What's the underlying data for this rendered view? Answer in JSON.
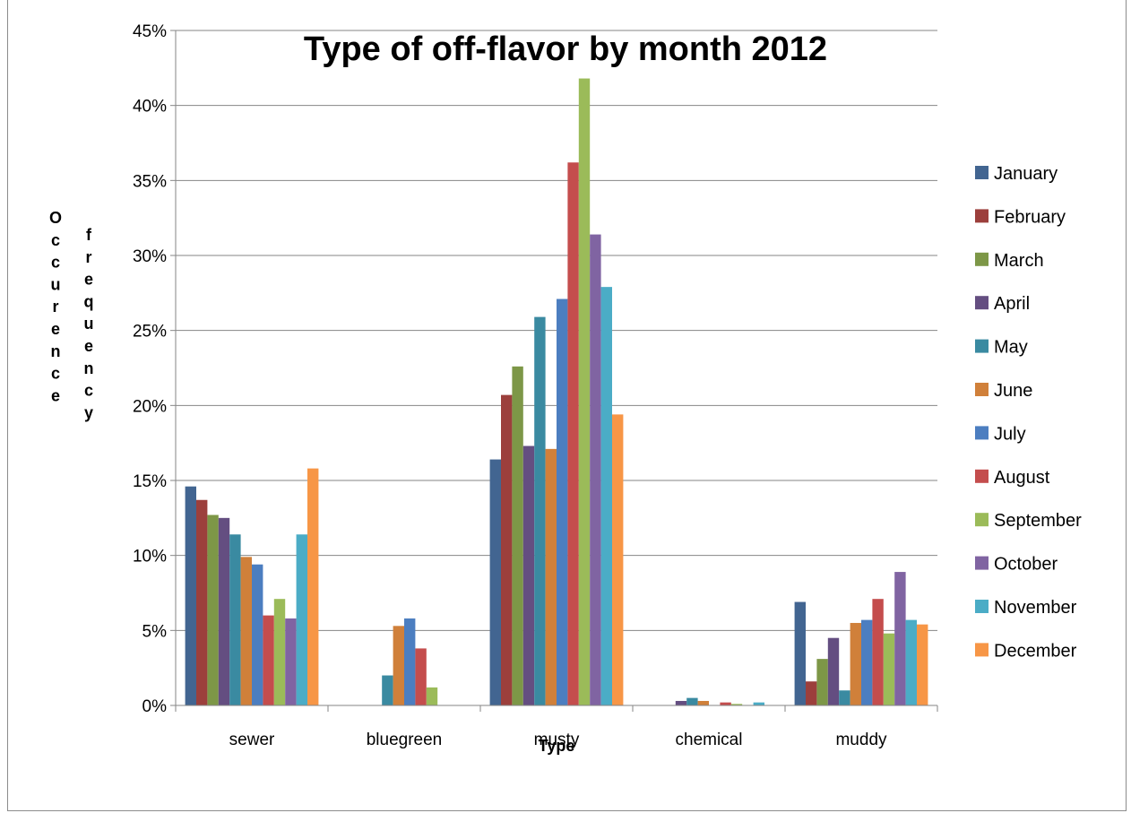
{
  "chart_data": {
    "type": "bar",
    "title": "Type of off-flavor by month 2012",
    "xlabel": "Type",
    "ylabel_parts": [
      "Occurence",
      "frequency"
    ],
    "categories": [
      "sewer",
      "bluegreen",
      "musty",
      "chemical",
      "muddy"
    ],
    "ylim": [
      0,
      45
    ],
    "yticks": [
      0,
      5,
      10,
      15,
      20,
      25,
      30,
      35,
      40,
      45
    ],
    "ytick_labels": [
      "0%",
      "5%",
      "10%",
      "15%",
      "20%",
      "25%",
      "30%",
      "35%",
      "40%",
      "45%"
    ],
    "grid": true,
    "legend_position": "right",
    "series": [
      {
        "name": "January",
        "color": "#426591",
        "values": [
          14.6,
          0,
          16.4,
          0,
          6.9
        ]
      },
      {
        "name": "February",
        "color": "#9c3f3c",
        "values": [
          13.7,
          0,
          20.7,
          0,
          1.6
        ]
      },
      {
        "name": "March",
        "color": "#7d9747",
        "values": [
          12.7,
          0,
          22.6,
          0,
          3.1
        ]
      },
      {
        "name": "April",
        "color": "#644e81",
        "values": [
          12.5,
          0,
          17.3,
          0.3,
          4.5
        ]
      },
      {
        "name": "May",
        "color": "#3a8aa1",
        "values": [
          11.4,
          2.0,
          25.9,
          0.5,
          1.0
        ]
      },
      {
        "name": "June",
        "color": "#d0803a",
        "values": [
          9.9,
          5.3,
          17.1,
          0.3,
          5.5
        ]
      },
      {
        "name": "July",
        "color": "#4c7ec0",
        "values": [
          9.4,
          5.8,
          27.1,
          0,
          5.7
        ]
      },
      {
        "name": "August",
        "color": "#c44d4d",
        "values": [
          6.0,
          3.8,
          36.2,
          0.2,
          7.1
        ]
      },
      {
        "name": "September",
        "color": "#9bbb59",
        "values": [
          7.1,
          1.2,
          41.8,
          0.1,
          4.8
        ]
      },
      {
        "name": "October",
        "color": "#8064a2",
        "values": [
          5.8,
          0,
          31.4,
          0,
          8.9
        ]
      },
      {
        "name": "November",
        "color": "#4bacc6",
        "values": [
          11.4,
          0,
          27.9,
          0.2,
          5.7
        ]
      },
      {
        "name": "December",
        "color": "#f79646",
        "values": [
          15.8,
          0,
          19.4,
          0,
          5.4
        ]
      }
    ]
  }
}
